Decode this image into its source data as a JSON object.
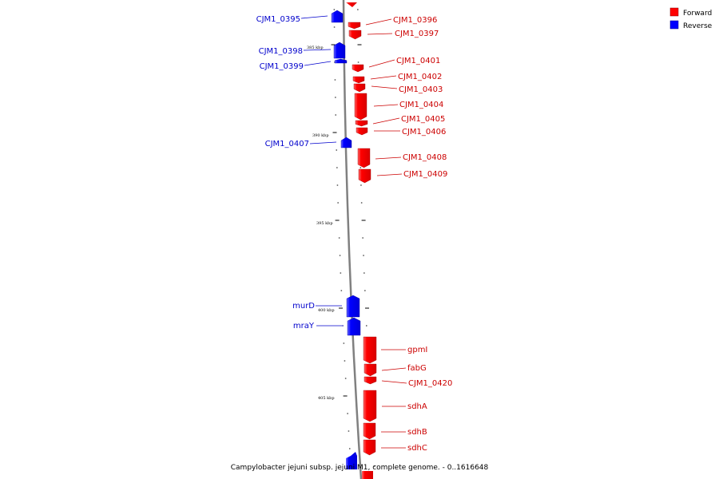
{
  "colors": {
    "forward": "#ff0000",
    "forward_label": "#cc0000",
    "reverse": "#0000ff",
    "reverse_label": "#0000cc",
    "backbone": "#808080"
  },
  "legend": {
    "forward": "Forward",
    "reverse": "Reverse"
  },
  "caption": "Campylobacter jejuni subsp. jejuni M1, complete genome. - 0..1616648",
  "ticks": [
    "385 kbp",
    "390 kbp",
    "395 kbp",
    "400 kbp",
    "405 kbp"
  ],
  "genes": [
    {
      "name": "CJM1_0395",
      "strand": "reverse"
    },
    {
      "name": "CJM1_0396",
      "strand": "forward"
    },
    {
      "name": "CJM1_0397",
      "strand": "forward"
    },
    {
      "name": "CJM1_0398",
      "strand": "reverse"
    },
    {
      "name": "CJM1_0399",
      "strand": "reverse"
    },
    {
      "name": "CJM1_0401",
      "strand": "forward"
    },
    {
      "name": "CJM1_0402",
      "strand": "forward"
    },
    {
      "name": "CJM1_0403",
      "strand": "forward"
    },
    {
      "name": "CJM1_0404",
      "strand": "forward"
    },
    {
      "name": "CJM1_0405",
      "strand": "forward"
    },
    {
      "name": "CJM1_0406",
      "strand": "forward"
    },
    {
      "name": "CJM1_0407",
      "strand": "reverse"
    },
    {
      "name": "CJM1_0408",
      "strand": "forward"
    },
    {
      "name": "CJM1_0409",
      "strand": "forward"
    },
    {
      "name": "murD",
      "strand": "reverse"
    },
    {
      "name": "mraY",
      "strand": "reverse"
    },
    {
      "name": "gpmI",
      "strand": "forward"
    },
    {
      "name": "fabG",
      "strand": "forward"
    },
    {
      "name": "CJM1_0420",
      "strand": "forward"
    },
    {
      "name": "sdhA",
      "strand": "forward"
    },
    {
      "name": "sdhB",
      "strand": "forward"
    },
    {
      "name": "sdhC",
      "strand": "forward"
    }
  ]
}
